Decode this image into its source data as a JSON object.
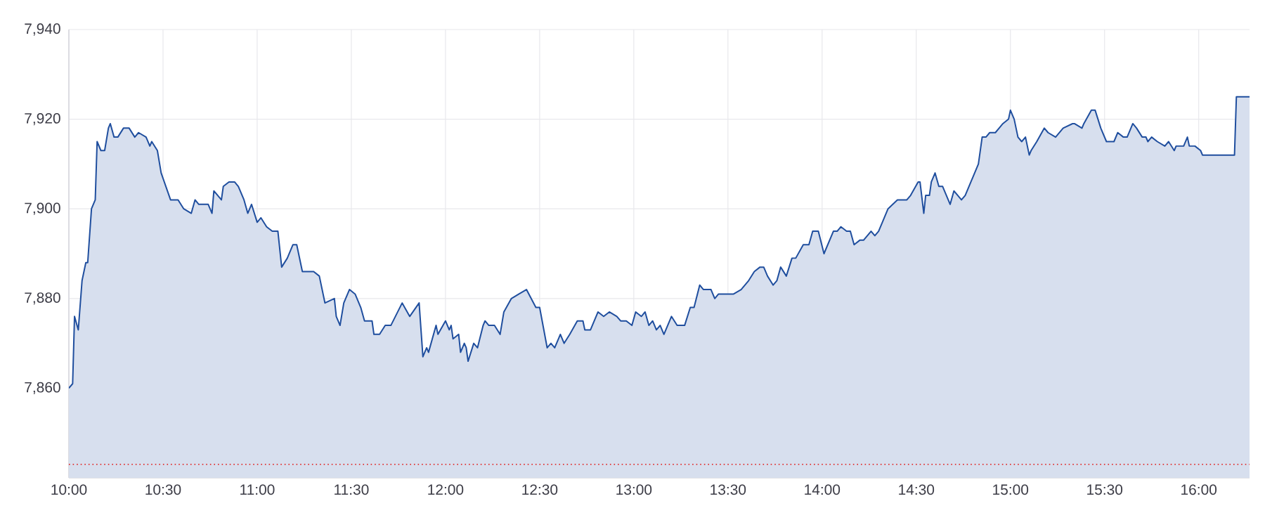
{
  "chart_data": {
    "type": "area",
    "grid": true,
    "marker": "none",
    "line_style": "solid",
    "xlim": [
      10,
      16.27
    ],
    "ylim": [
      7840,
      7940
    ],
    "xticks": [
      {
        "value": 10,
        "label": "10:00"
      },
      {
        "value": 10.5,
        "label": "10:30"
      },
      {
        "value": 11,
        "label": "11:00"
      },
      {
        "value": 11.5,
        "label": "11:30"
      },
      {
        "value": 12,
        "label": "12:00"
      },
      {
        "value": 12.5,
        "label": "12:30"
      },
      {
        "value": 13,
        "label": "13:00"
      },
      {
        "value": 13.5,
        "label": "13:30"
      },
      {
        "value": 14,
        "label": "14:00"
      },
      {
        "value": 14.5,
        "label": "14:30"
      },
      {
        "value": 15,
        "label": "15:00"
      },
      {
        "value": 15.5,
        "label": "15:30"
      },
      {
        "value": 16,
        "label": "16:00"
      }
    ],
    "yticks": [
      {
        "value": 7860,
        "label": "7,860"
      },
      {
        "value": 7880,
        "label": "7,880"
      },
      {
        "value": 7900,
        "label": "7,900"
      },
      {
        "value": 7920,
        "label": "7,920"
      },
      {
        "value": 7940,
        "label": "7,940"
      }
    ],
    "ref_lines": [
      {
        "axis": "y",
        "value": 7843,
        "color": "#e03030",
        "line_style": "dotted"
      }
    ],
    "series": [
      {
        "color": "#1f4e9e",
        "x": [
          10.0,
          10.02,
          10.03,
          10.05,
          10.07,
          10.09,
          10.1,
          10.12,
          10.14,
          10.15,
          10.17,
          10.19,
          10.21,
          10.22,
          10.24,
          10.26,
          10.29,
          10.32,
          10.35,
          10.37,
          10.41,
          10.43,
          10.44,
          10.47,
          10.49,
          10.54,
          10.58,
          10.61,
          10.65,
          10.67,
          10.69,
          10.74,
          10.76,
          10.77,
          10.81,
          10.82,
          10.85,
          10.88,
          10.9,
          10.93,
          10.95,
          10.97,
          11.0,
          11.02,
          11.05,
          11.08,
          11.11,
          11.13,
          11.16,
          11.19,
          11.21,
          11.24,
          11.26,
          11.3,
          11.33,
          11.36,
          11.41,
          11.42,
          11.44,
          11.46,
          11.49,
          11.52,
          11.55,
          11.57,
          11.61,
          11.62,
          11.65,
          11.68,
          11.71,
          11.77,
          11.81,
          11.86,
          11.88,
          11.9,
          11.91,
          11.95,
          11.96,
          12.0,
          12.02,
          12.03,
          12.04,
          12.07,
          12.08,
          12.1,
          12.11,
          12.12,
          12.15,
          12.17,
          12.2,
          12.21,
          12.23,
          12.26,
          12.29,
          12.31,
          12.35,
          12.39,
          12.43,
          12.48,
          12.5,
          12.54,
          12.56,
          12.58,
          12.61,
          12.63,
          12.66,
          12.7,
          12.73,
          12.74,
          12.77,
          12.81,
          12.84,
          12.87,
          12.91,
          12.93,
          12.96,
          12.99,
          13.01,
          13.04,
          13.06,
          13.08,
          13.1,
          13.12,
          13.14,
          13.16,
          13.2,
          13.23,
          13.27,
          13.3,
          13.32,
          13.35,
          13.37,
          13.41,
          13.43,
          13.45,
          13.47,
          13.53,
          13.57,
          13.61,
          13.64,
          13.67,
          13.69,
          13.71,
          13.74,
          13.76,
          13.78,
          13.81,
          13.84,
          13.86,
          13.9,
          13.93,
          13.95,
          13.98,
          14.01,
          14.06,
          14.08,
          14.1,
          14.13,
          14.15,
          14.17,
          14.2,
          14.22,
          14.26,
          14.28,
          14.3,
          14.32,
          14.35,
          14.4,
          14.45,
          14.47,
          14.51,
          14.52,
          14.54,
          14.55,
          14.57,
          14.58,
          14.6,
          14.62,
          14.64,
          14.68,
          14.7,
          14.72,
          14.74,
          14.76,
          14.8,
          14.83,
          14.85,
          14.87,
          14.89,
          14.92,
          14.94,
          14.96,
          14.99,
          15.0,
          15.02,
          15.04,
          15.06,
          15.08,
          15.1,
          15.11,
          15.14,
          15.18,
          15.2,
          15.24,
          15.28,
          15.33,
          15.34,
          15.38,
          15.39,
          15.43,
          15.45,
          15.48,
          15.51,
          15.55,
          15.57,
          15.6,
          15.62,
          15.65,
          15.67,
          15.7,
          15.72,
          15.73,
          15.75,
          15.78,
          15.82,
          15.84,
          15.87,
          15.88,
          15.92,
          15.94,
          15.95,
          15.98,
          16.01,
          16.02,
          16.19,
          16.2,
          16.27
        ],
        "values": [
          7860,
          7861,
          7876,
          7873,
          7884,
          7888,
          7888,
          7900,
          7902,
          7915,
          7913,
          7913,
          7918,
          7919,
          7916,
          7916,
          7918,
          7918,
          7916,
          7917,
          7916,
          7914,
          7915,
          7913,
          7908,
          7902,
          7902,
          7900,
          7899,
          7902,
          7901,
          7901,
          7899,
          7904,
          7902,
          7905,
          7906,
          7906,
          7905,
          7902,
          7899,
          7901,
          7897,
          7898,
          7896,
          7895,
          7895,
          7887,
          7889,
          7892,
          7892,
          7886,
          7886,
          7886,
          7885,
          7879,
          7880,
          7876,
          7874,
          7879,
          7882,
          7881,
          7878,
          7875,
          7875,
          7872,
          7872,
          7874,
          7874,
          7879,
          7876,
          7879,
          7867,
          7869,
          7868,
          7874,
          7872,
          7875,
          7873,
          7874,
          7871,
          7872,
          7868,
          7870,
          7869,
          7866,
          7870,
          7869,
          7874,
          7875,
          7874,
          7874,
          7872,
          7877,
          7880,
          7881,
          7882,
          7878,
          7878,
          7869,
          7870,
          7869,
          7872,
          7870,
          7872,
          7875,
          7875,
          7873,
          7873,
          7877,
          7876,
          7877,
          7876,
          7875,
          7875,
          7874,
          7877,
          7876,
          7877,
          7874,
          7875,
          7873,
          7874,
          7872,
          7876,
          7874,
          7874,
          7878,
          7878,
          7883,
          7882,
          7882,
          7880,
          7881,
          7881,
          7881,
          7882,
          7884,
          7886,
          7887,
          7887,
          7885,
          7883,
          7884,
          7887,
          7885,
          7889,
          7889,
          7892,
          7892,
          7895,
          7895,
          7890,
          7895,
          7895,
          7896,
          7895,
          7895,
          7892,
          7893,
          7893,
          7895,
          7894,
          7895,
          7897,
          7900,
          7902,
          7902,
          7903,
          7906,
          7906,
          7899,
          7903,
          7903,
          7906,
          7908,
          7905,
          7905,
          7901,
          7904,
          7903,
          7902,
          7903,
          7907,
          7910,
          7916,
          7916,
          7917,
          7917,
          7918,
          7919,
          7920,
          7922,
          7920,
          7916,
          7915,
          7916,
          7912,
          7913,
          7915,
          7918,
          7917,
          7916,
          7918,
          7919,
          7919,
          7918,
          7919,
          7922,
          7922,
          7918,
          7915,
          7915,
          7917,
          7916,
          7916,
          7919,
          7918,
          7916,
          7916,
          7915,
          7916,
          7915,
          7914,
          7915,
          7913,
          7914,
          7914,
          7916,
          7914,
          7914,
          7913,
          7912,
          7912,
          7925,
          7925
        ]
      }
    ]
  }
}
